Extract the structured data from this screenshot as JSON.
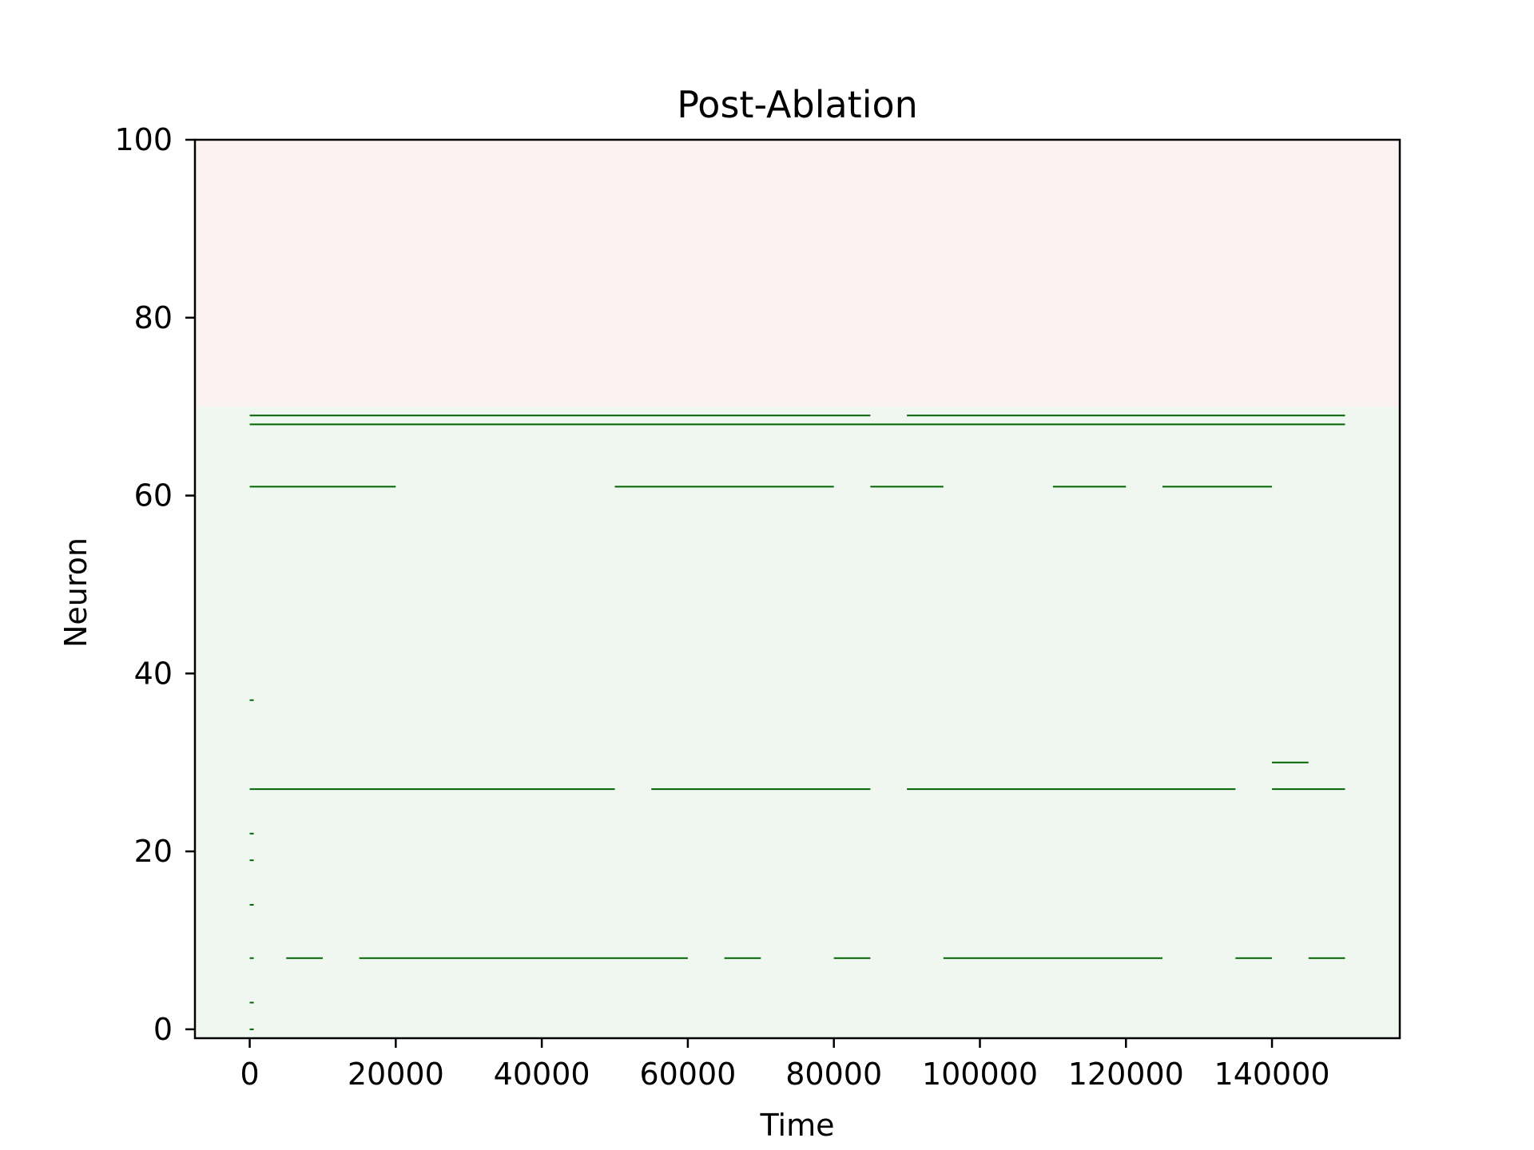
{
  "chart_data": {
    "type": "raster",
    "title": "Post-Ablation",
    "xlabel": "Time",
    "ylabel": "Neuron",
    "xlim": [
      -7500,
      157500
    ],
    "ylim": [
      -1,
      100
    ],
    "xticks": [
      0,
      20000,
      40000,
      60000,
      80000,
      100000,
      120000,
      140000
    ],
    "yticks": [
      0,
      20,
      40,
      60,
      80,
      100
    ],
    "regions": [
      {
        "y_from": 70,
        "y_to": 100,
        "color": "#fdf2f2"
      },
      {
        "y_from": -1,
        "y_to": 70,
        "color": "#f0f7f0"
      }
    ],
    "line_color": "#006400",
    "segments": [
      {
        "neuron": 69,
        "start": 0,
        "end": 85000
      },
      {
        "neuron": 69,
        "start": 90000,
        "end": 150000
      },
      {
        "neuron": 68,
        "start": 0,
        "end": 150000
      },
      {
        "neuron": 61,
        "start": 0,
        "end": 20000
      },
      {
        "neuron": 61,
        "start": 50000,
        "end": 80000
      },
      {
        "neuron": 61,
        "start": 85000,
        "end": 95000
      },
      {
        "neuron": 61,
        "start": 110000,
        "end": 120000
      },
      {
        "neuron": 61,
        "start": 125000,
        "end": 140000
      },
      {
        "neuron": 37,
        "start": 0,
        "end": 300
      },
      {
        "neuron": 30,
        "start": 140000,
        "end": 145000
      },
      {
        "neuron": 27,
        "start": 0,
        "end": 50000
      },
      {
        "neuron": 27,
        "start": 55000,
        "end": 85000
      },
      {
        "neuron": 27,
        "start": 90000,
        "end": 135000
      },
      {
        "neuron": 27,
        "start": 140000,
        "end": 150000
      },
      {
        "neuron": 22,
        "start": 0,
        "end": 300
      },
      {
        "neuron": 19,
        "start": 0,
        "end": 300
      },
      {
        "neuron": 14,
        "start": 0,
        "end": 300
      },
      {
        "neuron": 8,
        "start": 0,
        "end": 300
      },
      {
        "neuron": 8,
        "start": 5000,
        "end": 10000
      },
      {
        "neuron": 8,
        "start": 15000,
        "end": 60000
      },
      {
        "neuron": 8,
        "start": 65000,
        "end": 70000
      },
      {
        "neuron": 8,
        "start": 80000,
        "end": 85000
      },
      {
        "neuron": 8,
        "start": 95000,
        "end": 125000
      },
      {
        "neuron": 8,
        "start": 135000,
        "end": 140000
      },
      {
        "neuron": 8,
        "start": 145000,
        "end": 150000
      },
      {
        "neuron": 3,
        "start": 0,
        "end": 300
      },
      {
        "neuron": 0,
        "start": 0,
        "end": 300
      }
    ]
  }
}
